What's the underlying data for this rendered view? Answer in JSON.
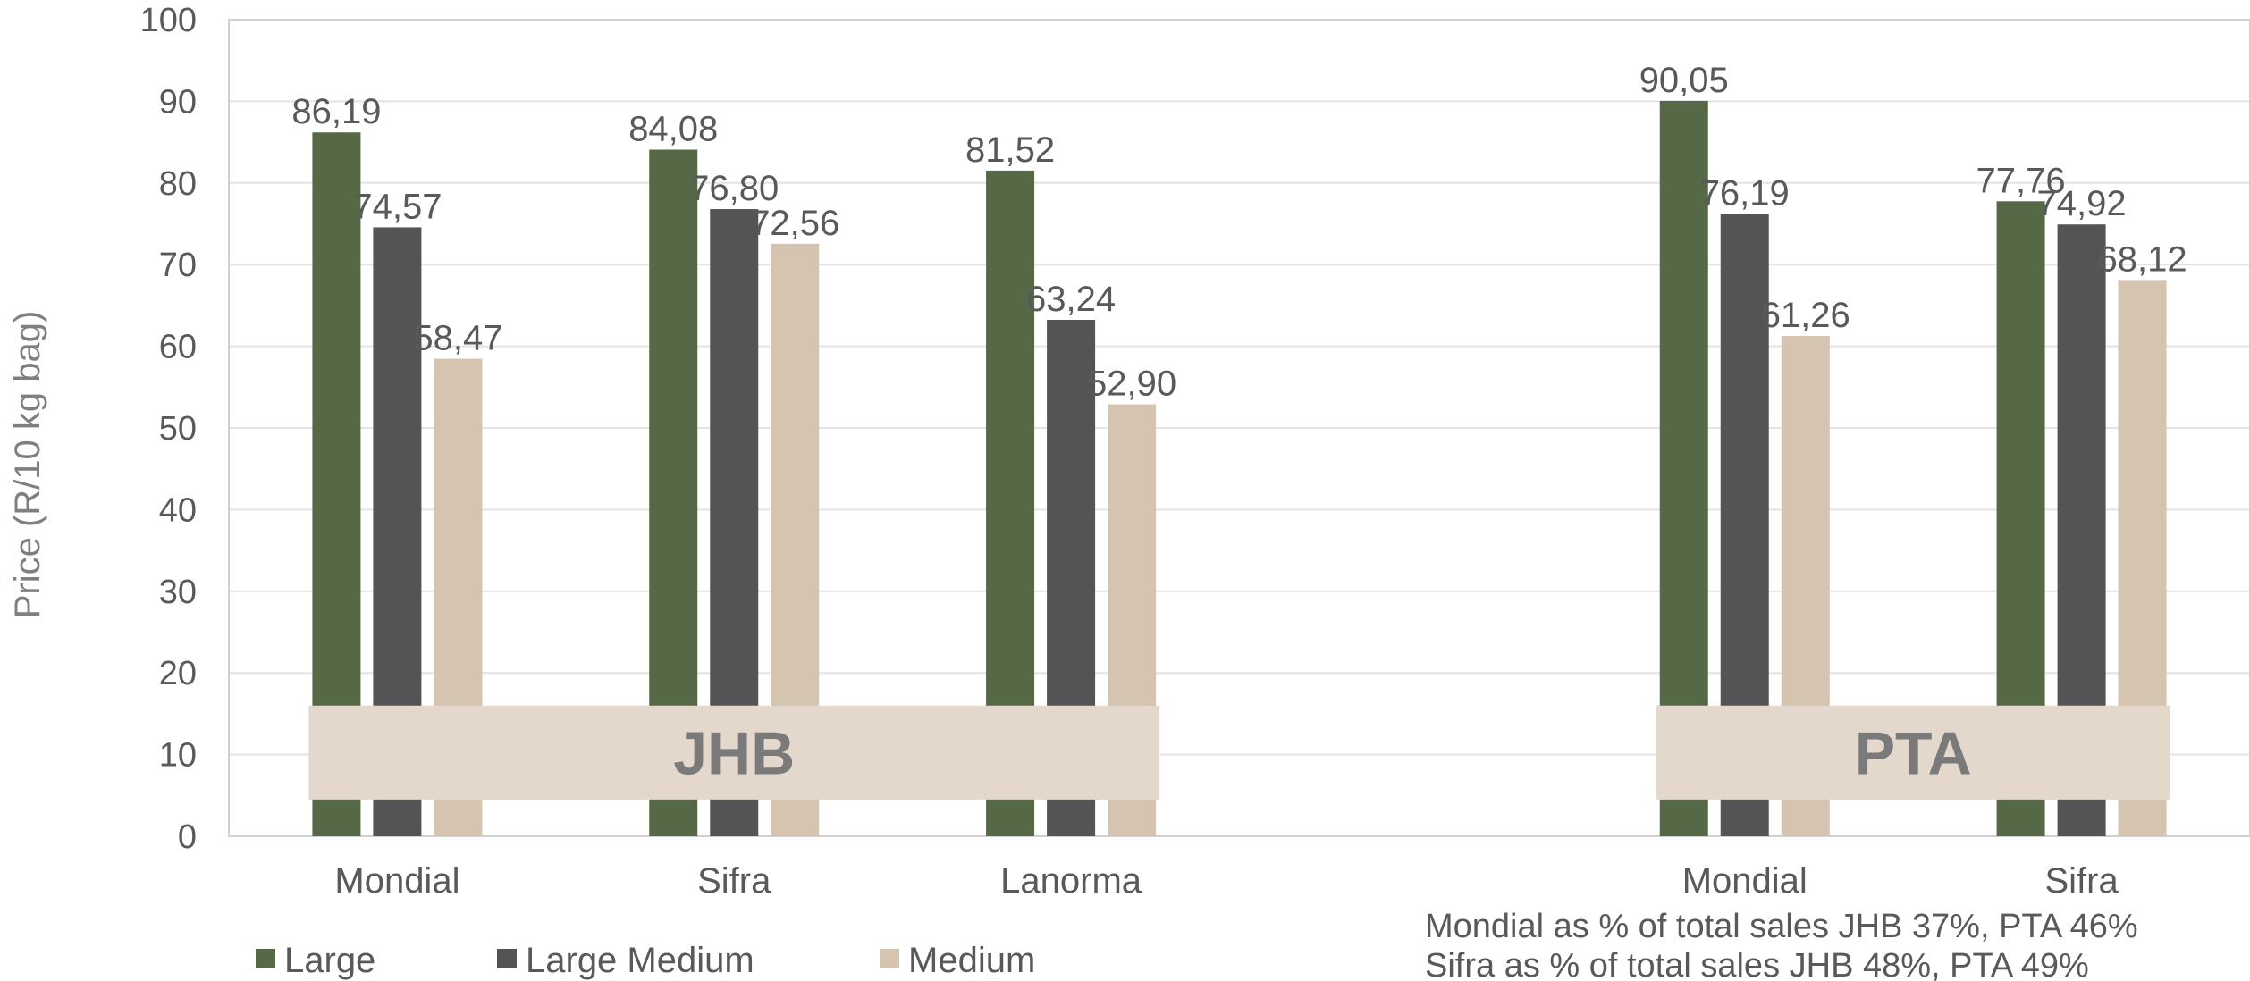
{
  "chart_data": {
    "type": "bar",
    "categories": [
      "Mondial",
      "Sifra",
      "Lanorma",
      "",
      "Mondial",
      "Sifra"
    ],
    "series": [
      {
        "name": "Large",
        "color": "#566947",
        "values": [
          86.19,
          84.08,
          81.52,
          null,
          90.05,
          77.76
        ]
      },
      {
        "name": "Large Medium",
        "color": "#545457",
        "values": [
          74.57,
          76.8,
          63.24,
          null,
          76.19,
          74.92
        ]
      },
      {
        "name": "Medium",
        "color": "#d4c4b0",
        "values": [
          58.47,
          72.56,
          52.9,
          null,
          61.26,
          68.12
        ]
      }
    ],
    "data_labels": [
      [
        "86,19",
        "84,08",
        "81,52",
        "",
        "90,05",
        "77,76"
      ],
      [
        "74,57",
        "76,80",
        "63,24",
        "",
        "76,19",
        "74,92"
      ],
      [
        "58,47",
        "72,56",
        "52,90",
        "",
        "61,26",
        "68,12"
      ]
    ],
    "ylabel": "Price (R/10 kg bag)",
    "ylim": [
      0,
      100
    ],
    "yticks": [
      "0",
      "10",
      "20",
      "30",
      "40",
      "50",
      "60",
      "70",
      "80",
      "90",
      "100"
    ],
    "grid": true,
    "legend_position": "bottom-left",
    "region_labels": [
      {
        "text": "JHB",
        "first_category": 0,
        "last_category": 2
      },
      {
        "text": "PTA",
        "first_category": 4,
        "last_category": 5
      }
    ],
    "region_box_color": "#e3d8cb",
    "notes": [
      "Mondial as % of total sales JHB 37%, PTA 46%",
      "Sifra as % of total sales JHB 48%, PTA 49%"
    ]
  }
}
